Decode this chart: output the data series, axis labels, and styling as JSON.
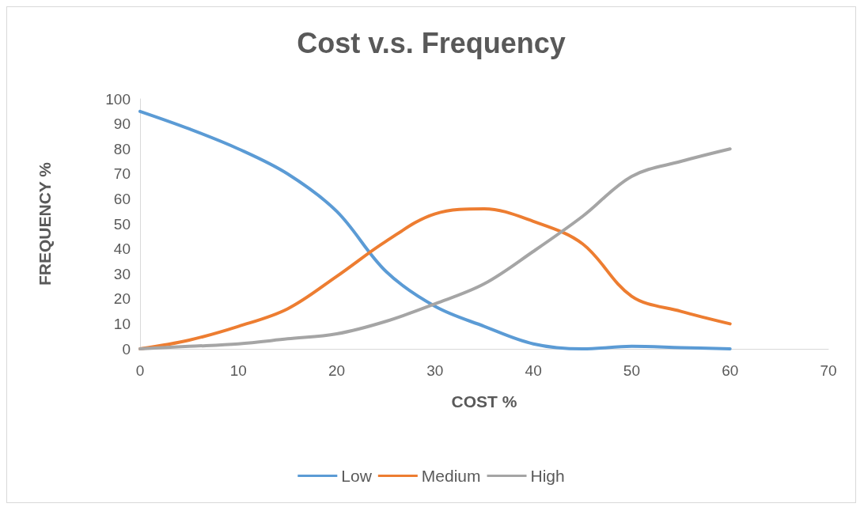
{
  "chart_data": {
    "type": "line",
    "title": "Cost v.s. Frequency",
    "xlabel": "COST %",
    "ylabel": "FREQUENCY %",
    "x": [
      0,
      5,
      10,
      15,
      20,
      25,
      30,
      35,
      40,
      45,
      50,
      55,
      60
    ],
    "series": [
      {
        "name": "Low",
        "color": "#5b9bd5",
        "values": [
          95,
          88,
          80,
          70,
          55,
          31,
          17,
          9,
          2,
          0,
          1,
          0.5,
          0
        ]
      },
      {
        "name": "Medium",
        "color": "#ed7d31",
        "values": [
          0,
          3.5,
          9,
          16,
          29,
          43,
          54,
          56,
          51,
          42,
          21,
          15,
          10
        ]
      },
      {
        "name": "High",
        "color": "#a5a5a5",
        "values": [
          0,
          1,
          2,
          4,
          6,
          11,
          18,
          26,
          39,
          53,
          69,
          75,
          80
        ]
      }
    ],
    "xlim": [
      0,
      70
    ],
    "xticks": [
      0,
      10,
      20,
      30,
      40,
      50,
      60,
      70
    ],
    "ylim": [
      0,
      100
    ],
    "yticks": [
      0,
      10,
      20,
      30,
      40,
      50,
      60,
      70,
      80,
      90,
      100
    ],
    "grid": false,
    "legend": "bottom",
    "marker": "none",
    "line_style": "solid"
  }
}
